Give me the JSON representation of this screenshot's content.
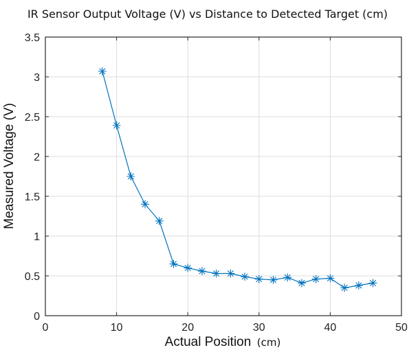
{
  "chart_data": {
    "type": "line",
    "title": "IR Sensor Output Voltage (V) vs Distance to Detected Target (cm)",
    "xlabel": "Actual Position",
    "xlabel_unit": "(cm)",
    "ylabel": "Measured Voltage (V)",
    "xlim": [
      0,
      50
    ],
    "ylim": [
      0,
      3.5
    ],
    "xticks": [
      0,
      10,
      20,
      30,
      40,
      50
    ],
    "xtick_labels": [
      "0",
      "10",
      "20",
      "30",
      "40",
      "50"
    ],
    "yticks": [
      0,
      0.5,
      1,
      1.5,
      2,
      2.5,
      3,
      3.5
    ],
    "ytick_labels": [
      "0",
      "0.5",
      "1",
      "1.5",
      "2",
      "2.5",
      "3",
      "3.5"
    ],
    "grid": true,
    "marker": "asterisk",
    "color": "#0072bd",
    "series": [
      {
        "x": [
          8,
          10,
          12,
          14,
          16,
          18,
          20,
          22,
          24,
          26,
          28,
          30,
          32,
          34,
          36,
          38,
          40,
          42,
          44,
          46
        ],
        "y": [
          3.07,
          2.39,
          1.75,
          1.4,
          1.19,
          0.65,
          0.6,
          0.56,
          0.53,
          0.53,
          0.49,
          0.46,
          0.45,
          0.48,
          0.41,
          0.46,
          0.47,
          0.35,
          0.38,
          0.41
        ]
      }
    ]
  }
}
